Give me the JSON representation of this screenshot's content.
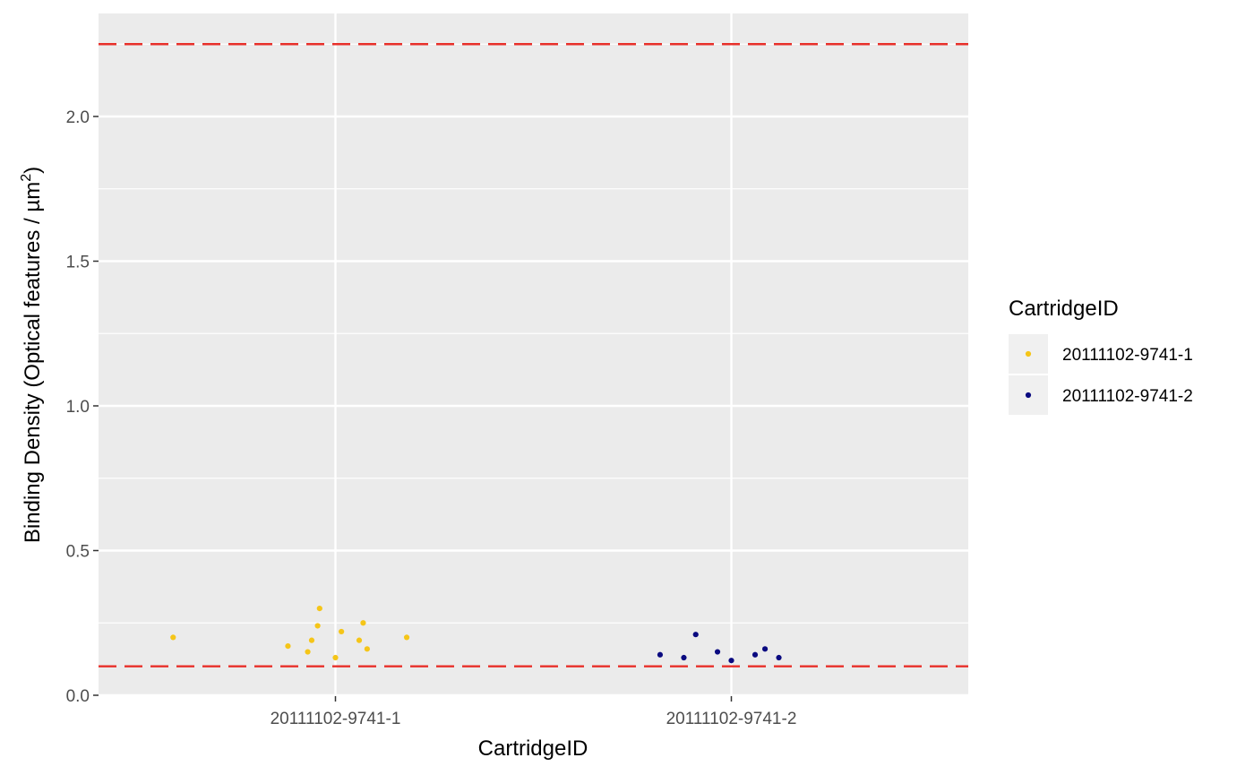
{
  "chart_data": {
    "type": "scatter",
    "xlabel": "CartridgeID",
    "ylabel_main": "Binding Density (Optical features / µm",
    "ylabel_sup": "2",
    "ylabel_close": ")",
    "categories": [
      "20111102-9741-1",
      "20111102-9741-2"
    ],
    "ylim": [
      0,
      2.36
    ],
    "yticks": [
      0.0,
      0.5,
      1.0,
      1.5,
      2.0
    ],
    "ytick_labels": [
      "0.0",
      "0.5",
      "1.0",
      "1.5",
      "2.0"
    ],
    "grid": true,
    "reference_lines": [
      {
        "y": 0.1,
        "color": "#e8302a",
        "style": "dashed"
      },
      {
        "y": 2.25,
        "color": "#e8302a",
        "style": "dashed"
      }
    ],
    "legend": {
      "title": "CartridgeID",
      "position": "right",
      "entries": [
        "20111102-9741-1",
        "20111102-9741-2"
      ]
    },
    "series": [
      {
        "name": "20111102-9741-1",
        "color": "#f5c518",
        "points": [
          {
            "x": -0.41,
            "y": 0.2
          },
          {
            "x": -0.12,
            "y": 0.17
          },
          {
            "x": -0.07,
            "y": 0.15
          },
          {
            "x": -0.06,
            "y": 0.19
          },
          {
            "x": -0.045,
            "y": 0.24
          },
          {
            "x": -0.04,
            "y": 0.3
          },
          {
            "x": 0.0,
            "y": 0.13
          },
          {
            "x": 0.015,
            "y": 0.22
          },
          {
            "x": 0.06,
            "y": 0.19
          },
          {
            "x": 0.07,
            "y": 0.25
          },
          {
            "x": 0.08,
            "y": 0.16
          },
          {
            "x": 0.18,
            "y": 0.2
          }
        ]
      },
      {
        "name": "20111102-9741-2",
        "color": "#0a0a80",
        "points": [
          {
            "x": 0.82,
            "y": 0.14
          },
          {
            "x": 0.88,
            "y": 0.13
          },
          {
            "x": 0.91,
            "y": 0.21
          },
          {
            "x": 0.965,
            "y": 0.15
          },
          {
            "x": 1.0,
            "y": 0.12
          },
          {
            "x": 1.06,
            "y": 0.14
          },
          {
            "x": 1.085,
            "y": 0.16
          },
          {
            "x": 1.12,
            "y": 0.13
          }
        ]
      }
    ]
  }
}
